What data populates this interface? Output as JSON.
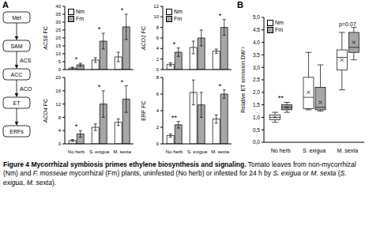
{
  "panel_labels": [
    "A",
    "B"
  ],
  "diagram": {
    "nodes": [
      "Met",
      "SAM",
      "ACC",
      "ET",
      "ERFs"
    ],
    "edge_labels": [
      null,
      "ACS",
      "ACO",
      null
    ]
  },
  "chart_data": [
    {
      "type": "bar",
      "y_label": "ACS6 FC",
      "categories": [
        "No herb",
        "S. exigua",
        "M. sexta"
      ],
      "series": [
        {
          "name": "Nm",
          "color": "#ffffff",
          "values": [
            1,
            6,
            8
          ],
          "errors": [
            0.5,
            1.5,
            3
          ]
        },
        {
          "name": "Fm",
          "color": "#a6a6a6",
          "values": [
            3,
            18,
            27
          ],
          "errors": [
            1,
            5,
            8
          ]
        }
      ],
      "significance": [
        "*",
        "*",
        "*"
      ],
      "ylim": [
        0,
        40
      ],
      "yticks": [
        0,
        5,
        10,
        15,
        20,
        25,
        30,
        35,
        40
      ],
      "legend": "top left",
      "tick_labels": "y"
    },
    {
      "type": "bar",
      "y_label": "ACO1 FC",
      "categories": [
        "No herb",
        "S. exigua",
        "M. sexta"
      ],
      "series": [
        {
          "name": "Nm",
          "color": "#ffffff",
          "values": [
            1,
            4.2,
            3.5
          ],
          "errors": [
            0.3,
            1.2,
            0.4
          ]
        },
        {
          "name": "Fm",
          "color": "#a6a6a6",
          "values": [
            3.3,
            6,
            8
          ],
          "errors": [
            0.8,
            1.5,
            1.5
          ]
        }
      ],
      "significance": [
        "*",
        null,
        "*"
      ],
      "ylim": [
        0,
        12
      ],
      "yticks": [
        0,
        2,
        4,
        6,
        8,
        10,
        12
      ],
      "legend": "top left",
      "tick_labels": "y"
    },
    {
      "type": "bar",
      "y_label": "ACO4 FC",
      "categories": [
        "No herb",
        "S. exigua",
        "M. sexta"
      ],
      "series": [
        {
          "name": "Nm",
          "color": "#ffffff",
          "values": [
            1,
            5,
            6.5
          ],
          "errors": [
            0.3,
            1,
            1
          ]
        },
        {
          "name": "Fm",
          "color": "#a6a6a6",
          "values": [
            3,
            12,
            13.5
          ],
          "errors": [
            1,
            4,
            4
          ]
        }
      ],
      "significance": [
        "*",
        "*",
        "*"
      ],
      "ylim": [
        0,
        20
      ],
      "yticks": [
        0,
        4,
        8,
        12,
        16,
        20
      ]
    },
    {
      "type": "bar",
      "y_label": "ERF FC",
      "categories": [
        "No herb",
        "S. exigua",
        "M. sexta"
      ],
      "series": [
        {
          "name": "Nm",
          "color": "#ffffff",
          "values": [
            1,
            6.2,
            3
          ],
          "errors": [
            0.2,
            1.5,
            0.5
          ]
        },
        {
          "name": "Fm",
          "color": "#a6a6a6",
          "values": [
            2.3,
            4.7,
            6
          ],
          "errors": [
            0.4,
            1.5,
            0.5
          ]
        }
      ],
      "significance": [
        "**",
        null,
        "*"
      ],
      "ylim": [
        0,
        8
      ],
      "yticks": [
        0,
        2,
        4,
        6,
        8
      ]
    },
    {
      "type": "box",
      "y_label": "Relative ET emission DW⁻¹",
      "categories": [
        "No herb",
        "S. exigua",
        "M. sexta"
      ],
      "series": [
        {
          "name": "Nm",
          "color": "#ffffff",
          "stats": [
            {
              "min": 0.8,
              "q1": 0.9,
              "median": 1.0,
              "q3": 1.1,
              "max": 1.2,
              "mean": 1.0
            },
            {
              "min": 1.3,
              "q1": 1.35,
              "median": 1.8,
              "q3": 2.6,
              "max": 3.6,
              "mean": 2.0
            },
            {
              "min": 2.1,
              "q1": 2.9,
              "median": 3.4,
              "q3": 3.7,
              "max": 4.4,
              "mean": 3.3
            }
          ]
        },
        {
          "name": "Fm",
          "color": "#a6a6a6",
          "stats": [
            {
              "min": 1.2,
              "q1": 1.3,
              "median": 1.4,
              "q3": 1.5,
              "max": 1.6,
              "mean": 1.4
            },
            {
              "min": 1.25,
              "q1": 1.3,
              "median": 1.4,
              "q3": 2.2,
              "max": 3.1,
              "mean": 1.6
            },
            {
              "min": 3.3,
              "q1": 3.6,
              "median": 3.8,
              "q3": 4.4,
              "max": 4.6,
              "mean": 4.0
            }
          ]
        }
      ],
      "annotations": [
        "**",
        null,
        "p=0.07"
      ],
      "ylim": [
        0,
        5
      ],
      "yticks": [
        {
          "value": 0,
          "label": "0,0"
        },
        {
          "value": 0.5,
          "label": "0,5"
        },
        {
          "value": 1,
          "label": "1,0"
        },
        {
          "value": 1.5,
          "label": "1,5"
        },
        {
          "value": 2,
          "label": "2,0"
        },
        {
          "value": 2.5,
          "label": "2,5"
        },
        {
          "value": 3,
          "label": "3,0"
        },
        {
          "value": 3.5,
          "label": "3,5"
        },
        {
          "value": 4,
          "label": "4,0"
        },
        {
          "value": 4.5,
          "label": "4,5"
        },
        {
          "value": 5,
          "label": "5,0"
        }
      ],
      "legend": "top left"
    }
  ],
  "caption": [
    {
      "text": "Figure 4 Mycorrhizal symbiosis primes ethylene biosynthesis and signaling.",
      "style": "bold"
    },
    {
      "text": " Tomato leaves from non-mycorrhizal (Nm) and ",
      "style": "normal"
    },
    {
      "text": "F. mosseae",
      "style": "italic"
    },
    {
      "text": " mycorrhizal (Fm) plants, uninfested (No herb) or infested for 24 h by ",
      "style": "normal"
    },
    {
      "text": "S. exigua",
      "style": "italic"
    },
    {
      "text": " or ",
      "style": "normal"
    },
    {
      "text": "M. sexta",
      "style": "italic"
    },
    {
      "text": " (",
      "style": "normal"
    },
    {
      "text": "S. exigua",
      "style": "italic"
    },
    {
      "text": ", ",
      "style": "normal"
    },
    {
      "text": "M. sexta",
      "style": "italic"
    },
    {
      "text": ").",
      "style": "normal"
    }
  ]
}
